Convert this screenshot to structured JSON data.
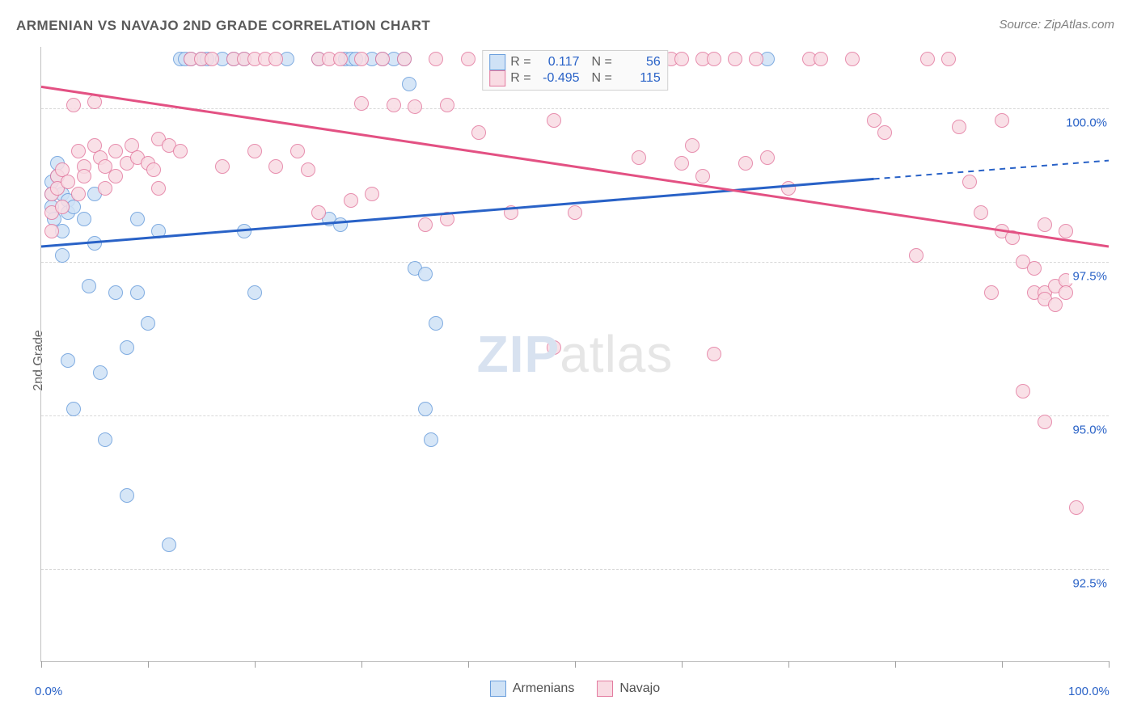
{
  "title": "ARMENIAN VS NAVAJO 2ND GRADE CORRELATION CHART",
  "source": "Source: ZipAtlas.com",
  "ylabel": "2nd Grade",
  "watermark_a": "ZIP",
  "watermark_b": "atlas",
  "chart": {
    "type": "scatter",
    "xlim": [
      0,
      100
    ],
    "ylim": [
      91,
      101
    ],
    "x_ticks": [
      0,
      10,
      20,
      30,
      40,
      50,
      60,
      70,
      80,
      90,
      100
    ],
    "x_tick_labels": {
      "0": "0.0%",
      "100": "100.0%"
    },
    "y_ticks": [
      92.5,
      95.0,
      97.5,
      100.0
    ],
    "y_tick_labels": [
      "92.5%",
      "95.0%",
      "97.5%",
      "100.0%"
    ],
    "background_color": "#ffffff",
    "grid_color": "#d8d8d8",
    "axis_color": "#c0c0c0",
    "ytick_label_color": "#2962c7",
    "xtick_label_color": "#2962c7",
    "marker_radius": 9,
    "series": [
      {
        "name": "Armenians",
        "fill": "#cfe2f6",
        "stroke": "#6a9edc",
        "line_color": "#2962c7",
        "line_width": 3,
        "R": "0.117",
        "N": "56",
        "trend": {
          "x1": 0,
          "y1": 97.75,
          "x2": 78,
          "y2": 98.85,
          "x2_ext": 100,
          "y2_ext": 99.15
        },
        "points": [
          [
            1,
            98.8
          ],
          [
            1,
            98.6
          ],
          [
            1,
            98.4
          ],
          [
            1.2,
            98.2
          ],
          [
            1.5,
            99.1
          ],
          [
            1.5,
            98.9
          ],
          [
            2,
            98.6
          ],
          [
            2,
            98.0
          ],
          [
            2,
            97.6
          ],
          [
            2.5,
            98.5
          ],
          [
            2.5,
            98.3
          ],
          [
            2.5,
            95.9
          ],
          [
            3,
            98.4
          ],
          [
            3,
            95.1
          ],
          [
            4,
            98.2
          ],
          [
            4.5,
            97.1
          ],
          [
            5,
            98.6
          ],
          [
            5,
            97.8
          ],
          [
            5.5,
            95.7
          ],
          [
            6,
            94.6
          ],
          [
            7,
            97.0
          ],
          [
            8,
            96.1
          ],
          [
            8,
            93.7
          ],
          [
            9,
            98.2
          ],
          [
            9,
            97.0
          ],
          [
            10,
            96.5
          ],
          [
            11,
            98.0
          ],
          [
            12,
            92.9
          ],
          [
            13,
            100.8
          ],
          [
            13.5,
            100.8
          ],
          [
            14,
            100.8
          ],
          [
            15,
            100.8
          ],
          [
            15.5,
            100.8
          ],
          [
            17,
            100.8
          ],
          [
            18,
            100.8
          ],
          [
            19,
            100.8
          ],
          [
            19,
            98.0
          ],
          [
            20,
            97.0
          ],
          [
            23,
            100.8
          ],
          [
            26,
            100.8
          ],
          [
            27,
            98.2
          ],
          [
            28,
            98.1
          ],
          [
            28.5,
            100.8
          ],
          [
            29,
            100.8
          ],
          [
            29.5,
            100.8
          ],
          [
            31,
            100.8
          ],
          [
            32,
            100.8
          ],
          [
            33,
            100.8
          ],
          [
            34,
            100.8
          ],
          [
            34.5,
            100.4
          ],
          [
            35,
            97.4
          ],
          [
            36,
            97.3
          ],
          [
            36,
            95.1
          ],
          [
            36.5,
            94.6
          ],
          [
            37,
            96.5
          ],
          [
            68,
            100.8
          ]
        ]
      },
      {
        "name": "Navajo",
        "fill": "#f9dbe3",
        "stroke": "#e37ba0",
        "line_color": "#e35183",
        "line_width": 3,
        "R": "-0.495",
        "N": "115",
        "trend": {
          "x1": 0,
          "y1": 100.35,
          "x2": 100,
          "y2": 97.75
        },
        "points": [
          [
            1,
            98.6
          ],
          [
            1,
            98.3
          ],
          [
            1,
            98.0
          ],
          [
            1.5,
            98.9
          ],
          [
            1.5,
            98.7
          ],
          [
            2,
            99.0
          ],
          [
            2,
            98.4
          ],
          [
            2.5,
            98.8
          ],
          [
            3,
            100.05
          ],
          [
            3.5,
            99.3
          ],
          [
            3.5,
            98.6
          ],
          [
            4,
            99.05
          ],
          [
            4,
            98.9
          ],
          [
            5,
            100.1
          ],
          [
            5,
            99.4
          ],
          [
            5.5,
            99.2
          ],
          [
            6,
            99.05
          ],
          [
            6,
            98.7
          ],
          [
            7,
            99.3
          ],
          [
            7,
            98.9
          ],
          [
            8,
            99.1
          ],
          [
            8.5,
            99.4
          ],
          [
            9,
            99.2
          ],
          [
            10,
            99.1
          ],
          [
            10.5,
            99.0
          ],
          [
            11,
            99.5
          ],
          [
            11,
            98.7
          ],
          [
            12,
            99.4
          ],
          [
            13,
            99.3
          ],
          [
            14,
            100.8
          ],
          [
            15,
            100.8
          ],
          [
            16,
            100.8
          ],
          [
            17,
            99.05
          ],
          [
            18,
            100.8
          ],
          [
            19,
            100.8
          ],
          [
            20,
            99.3
          ],
          [
            20,
            100.8
          ],
          [
            21,
            100.8
          ],
          [
            22,
            99.05
          ],
          [
            22,
            100.8
          ],
          [
            24,
            99.3
          ],
          [
            25,
            99.0
          ],
          [
            26,
            100.8
          ],
          [
            26,
            98.3
          ],
          [
            27,
            100.8
          ],
          [
            28,
            100.8
          ],
          [
            29,
            98.5
          ],
          [
            30,
            100.08
          ],
          [
            30,
            100.8
          ],
          [
            31,
            98.6
          ],
          [
            32,
            100.8
          ],
          [
            33,
            100.05
          ],
          [
            34,
            100.8
          ],
          [
            35,
            100.02
          ],
          [
            36,
            98.1
          ],
          [
            37,
            100.8
          ],
          [
            38,
            100.05
          ],
          [
            38,
            98.2
          ],
          [
            40,
            100.8
          ],
          [
            41,
            99.6
          ],
          [
            44,
            98.3
          ],
          [
            46,
            100.8
          ],
          [
            47,
            100.8
          ],
          [
            48,
            99.8
          ],
          [
            48,
            96.1
          ],
          [
            50,
            100.8
          ],
          [
            50,
            98.3
          ],
          [
            52,
            100.6
          ],
          [
            53,
            100.8
          ],
          [
            54,
            100.8
          ],
          [
            55,
            100.8
          ],
          [
            56,
            99.2
          ],
          [
            58,
            100.8
          ],
          [
            59,
            100.8
          ],
          [
            60,
            99.1
          ],
          [
            60,
            100.8
          ],
          [
            61,
            99.4
          ],
          [
            62,
            100.8
          ],
          [
            62,
            98.9
          ],
          [
            63,
            100.8
          ],
          [
            63,
            96.0
          ],
          [
            65,
            100.8
          ],
          [
            66,
            99.1
          ],
          [
            67,
            100.8
          ],
          [
            68,
            99.2
          ],
          [
            70,
            98.7
          ],
          [
            72,
            100.8
          ],
          [
            73,
            100.8
          ],
          [
            76,
            100.8
          ],
          [
            78,
            99.8
          ],
          [
            79,
            99.6
          ],
          [
            82,
            97.6
          ],
          [
            83,
            100.8
          ],
          [
            85,
            100.8
          ],
          [
            86,
            99.7
          ],
          [
            87,
            98.8
          ],
          [
            88,
            98.3
          ],
          [
            89,
            97.0
          ],
          [
            90,
            99.8
          ],
          [
            90,
            98.0
          ],
          [
            91,
            97.9
          ],
          [
            92,
            97.5
          ],
          [
            92,
            95.4
          ],
          [
            93,
            97.4
          ],
          [
            93,
            97.0
          ],
          [
            94,
            98.1
          ],
          [
            94,
            97.0
          ],
          [
            94,
            96.9
          ],
          [
            94,
            94.9
          ],
          [
            95,
            97.1
          ],
          [
            95,
            96.8
          ],
          [
            96,
            98.0
          ],
          [
            96,
            97.2
          ],
          [
            96,
            97.0
          ],
          [
            97,
            93.5
          ]
        ]
      }
    ],
    "legend_corr": {
      "R_label": "R =",
      "N_label": "N ="
    },
    "legend_bottom_labels": [
      "Armenians",
      "Navajo"
    ]
  }
}
